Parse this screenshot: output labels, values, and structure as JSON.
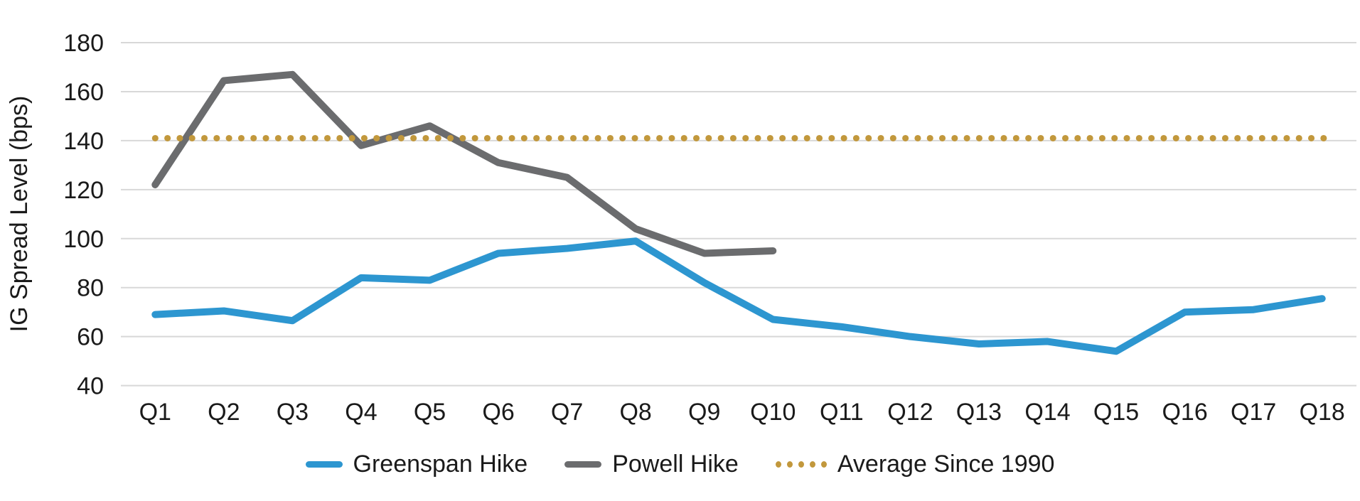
{
  "chart_data": {
    "type": "line",
    "title": "",
    "ylabel": "IG Spread Level (bps)",
    "xlabel": "",
    "ylim": [
      40,
      180
    ],
    "yticks": [
      40,
      60,
      80,
      100,
      120,
      140,
      160,
      180
    ],
    "grid": "horizontal",
    "gridline_color": "#d8d8d8",
    "text_color": "#1a1a1a",
    "legend_position": "bottom-center",
    "categories": [
      "Q1",
      "Q2",
      "Q3",
      "Q4",
      "Q5",
      "Q6",
      "Q7",
      "Q8",
      "Q9",
      "Q10",
      "Q11",
      "Q12",
      "Q13",
      "Q14",
      "Q15",
      "Q16",
      "Q17",
      "Q18"
    ],
    "series": [
      {
        "name": "Greenspan Hike",
        "color": "#2d96d0",
        "style": "solid",
        "values": [
          69,
          70.5,
          66.5,
          84,
          83,
          94,
          96,
          99,
          82,
          67,
          64,
          60,
          57,
          58,
          54,
          70,
          71,
          75.5
        ]
      },
      {
        "name": "Powell Hike",
        "color": "#6b6c6e",
        "style": "solid",
        "values": [
          122,
          164.5,
          167,
          138,
          146,
          131,
          125,
          104,
          94,
          95,
          null,
          null,
          null,
          null,
          null,
          null,
          null,
          null
        ]
      },
      {
        "name": "Average Since 1990",
        "color": "#c2983c",
        "style": "dotted",
        "value": 141
      }
    ]
  }
}
